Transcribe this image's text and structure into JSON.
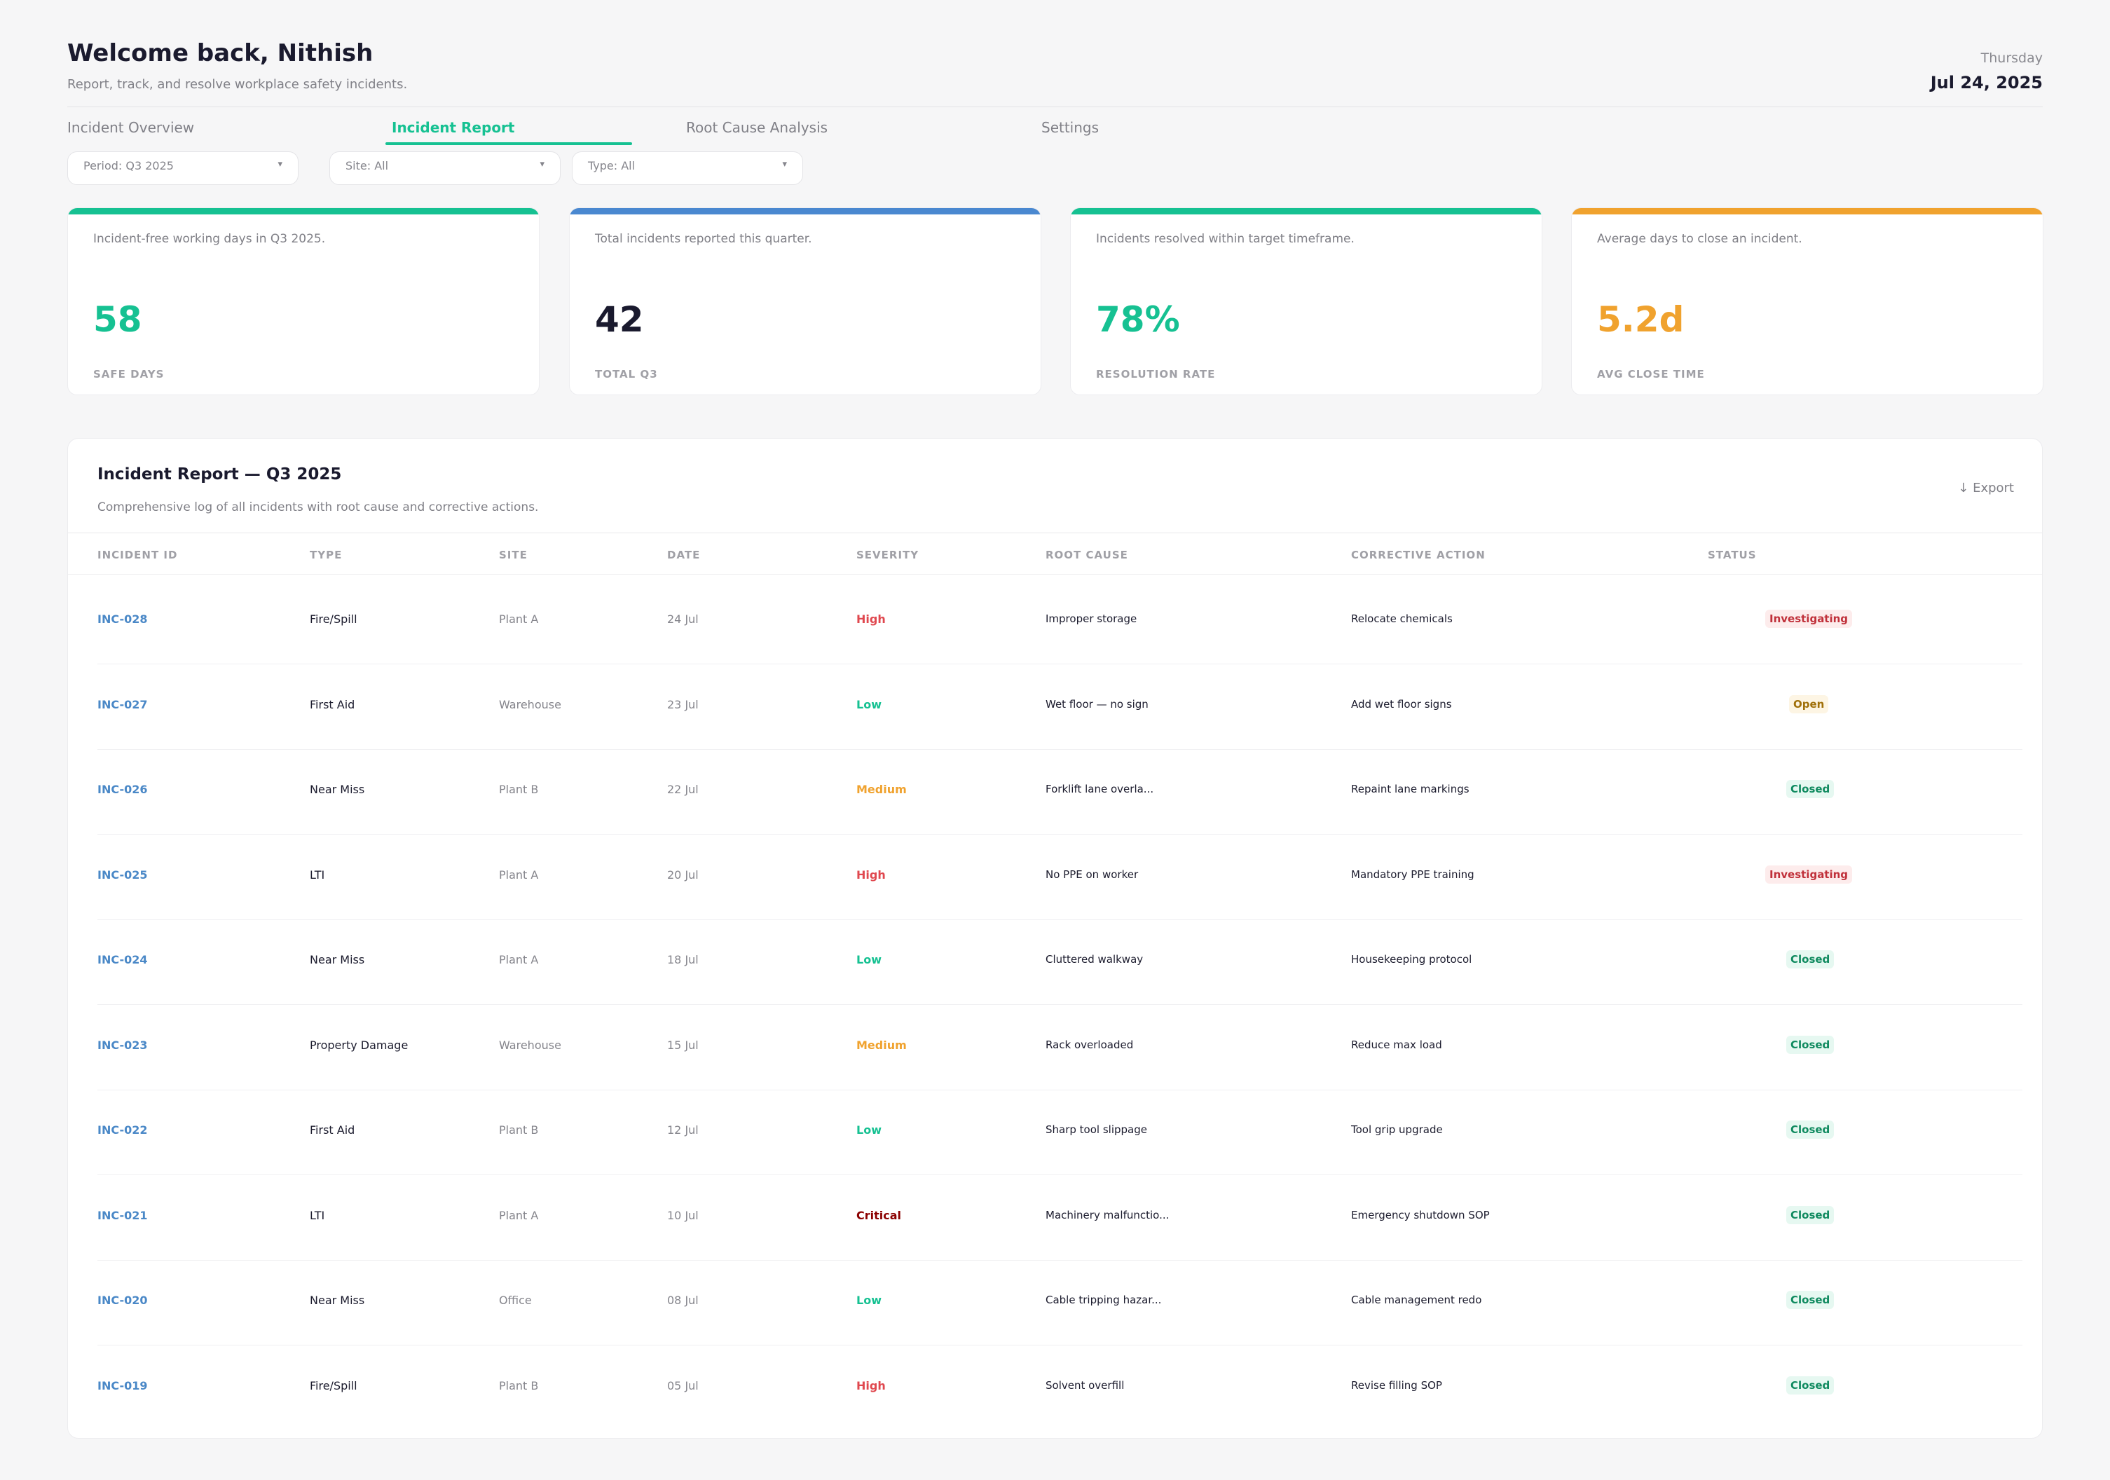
{
  "header": {
    "welcome": "Welcome back, Nithish",
    "subtitle": "Report, track, and resolve workplace safety incidents.",
    "weekday": "Thursday",
    "date": "Jul 24, 2025"
  },
  "tabs": [
    {
      "label": "Incident Overview",
      "active": false
    },
    {
      "label": "Incident Report",
      "active": true
    },
    {
      "label": "Root Cause Analysis",
      "active": false
    },
    {
      "label": "Settings",
      "active": false
    }
  ],
  "filters": {
    "period": "Period: Q3 2025",
    "site": "Site: All",
    "type": "Type: All",
    "caret": "▾"
  },
  "kpis": [
    {
      "description": "Incident-free working days in Q3 2025.",
      "value": "58",
      "label": "SAFE DAYS",
      "color": "#16c192"
    },
    {
      "description": "Total incidents reported this quarter.",
      "value": "42",
      "label": "TOTAL Q3",
      "color": "#4a88d0"
    },
    {
      "description": "Incidents resolved within target timeframe.",
      "value": "78%",
      "label": "RESOLUTION RATE",
      "color": "#16c192"
    },
    {
      "description": "Average days to close an incident.",
      "value": "5.2d",
      "label": "AVG CLOSE TIME",
      "color": "#f0a22e"
    }
  ],
  "colors": {
    "accent": "#16c192",
    "blue": "#4a88d0",
    "orange": "#f0a22e",
    "high": "#e0484f",
    "critical": "#8b0000"
  },
  "table": {
    "title": "Incident Report — Q3 2025",
    "subtitle": "Comprehensive log of all incidents with root cause and corrective actions.",
    "export_label": "↓ Export",
    "columns": [
      "INCIDENT ID",
      "TYPE",
      "SITE",
      "DATE",
      "SEVERITY",
      "ROOT CAUSE",
      "CORRECTIVE ACTION",
      "STATUS"
    ],
    "rows": [
      {
        "id": "INC-028",
        "type": "Fire/Spill",
        "site": "Plant A",
        "date": "24 Jul",
        "severity": "High",
        "root_cause": "Improper storage",
        "action": "Relocate chemicals",
        "status": "Investigating"
      },
      {
        "id": "INC-027",
        "type": "First Aid",
        "site": "Warehouse",
        "date": "23 Jul",
        "severity": "Low",
        "root_cause": "Wet floor — no sign",
        "action": "Add wet floor signs",
        "status": "Open"
      },
      {
        "id": "INC-026",
        "type": "Near Miss",
        "site": "Plant B",
        "date": "22 Jul",
        "severity": "Medium",
        "root_cause": "Forklift lane overla...",
        "action": "Repaint lane markings",
        "status": "Closed"
      },
      {
        "id": "INC-025",
        "type": "LTI",
        "site": "Plant A",
        "date": "20 Jul",
        "severity": "High",
        "root_cause": "No PPE on worker",
        "action": "Mandatory PPE training",
        "status": "Investigating"
      },
      {
        "id": "INC-024",
        "type": "Near Miss",
        "site": "Plant A",
        "date": "18 Jul",
        "severity": "Low",
        "root_cause": "Cluttered walkway",
        "action": "Housekeeping protocol",
        "status": "Closed"
      },
      {
        "id": "INC-023",
        "type": "Property Damage",
        "site": "Warehouse",
        "date": "15 Jul",
        "severity": "Medium",
        "root_cause": "Rack overloaded",
        "action": "Reduce max load",
        "status": "Closed"
      },
      {
        "id": "INC-022",
        "type": "First Aid",
        "site": "Plant B",
        "date": "12 Jul",
        "severity": "Low",
        "root_cause": "Sharp tool slippage",
        "action": "Tool grip upgrade",
        "status": "Closed"
      },
      {
        "id": "INC-021",
        "type": "LTI",
        "site": "Plant A",
        "date": "10 Jul",
        "severity": "Critical",
        "root_cause": "Machinery malfunctio...",
        "action": "Emergency shutdown SOP",
        "status": "Closed"
      },
      {
        "id": "INC-020",
        "type": "Near Miss",
        "site": "Office",
        "date": "08 Jul",
        "severity": "Low",
        "root_cause": "Cable tripping hazar...",
        "action": "Cable management redo",
        "status": "Closed"
      },
      {
        "id": "INC-019",
        "type": "Fire/Spill",
        "site": "Plant B",
        "date": "05 Jul",
        "severity": "High",
        "root_cause": "Solvent overfill",
        "action": "Revise filling SOP",
        "status": "Closed"
      }
    ]
  }
}
